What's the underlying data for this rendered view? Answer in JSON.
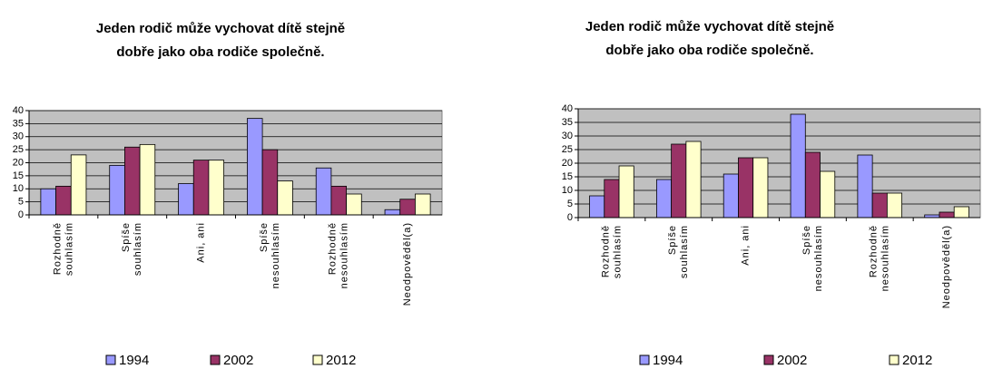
{
  "chart_data": [
    {
      "type": "bar",
      "title": [
        "Jeden rodič může vychovat dítě stejně",
        "dobře jako oba rodiče společně."
      ],
      "categories": [
        [
          "Rozhodně",
          "souhlasím"
        ],
        [
          "Spíše",
          "souhlasím"
        ],
        [
          "Ani, ani"
        ],
        [
          "Spíše",
          "nesouhlasím"
        ],
        [
          "Rozhodně",
          "nesouhlasím"
        ],
        [
          "Neodpověděl(a)"
        ]
      ],
      "series": [
        {
          "name": "1994",
          "color": "#9999ff",
          "values": [
            10,
            19,
            12,
            37,
            18,
            2
          ]
        },
        {
          "name": "2002",
          "color": "#993366",
          "values": [
            11,
            26,
            21,
            25,
            11,
            6
          ]
        },
        {
          "name": "2012",
          "color": "#ffffcc",
          "values": [
            23,
            27,
            21,
            13,
            8,
            8
          ]
        }
      ],
      "ylim": [
        0,
        40
      ],
      "yticks": [
        0,
        5,
        10,
        15,
        20,
        25,
        30,
        35,
        40
      ],
      "grid": true,
      "legend": "bottom"
    },
    {
      "type": "bar",
      "title": [
        "Jeden rodič může vychovat dítě stejně",
        "dobře jako oba rodiče společně."
      ],
      "categories": [
        [
          "Rozhodně",
          "souhlasím"
        ],
        [
          "Spíše",
          "souhlasím"
        ],
        [
          "Ani, ani"
        ],
        [
          "Spíše",
          "nesouhlasím"
        ],
        [
          "Rozhodně",
          "nesouhlasím"
        ],
        [
          "Neodpověděl(a)"
        ]
      ],
      "series": [
        {
          "name": "1994",
          "color": "#9999ff",
          "values": [
            8,
            14,
            16,
            38,
            23,
            1
          ]
        },
        {
          "name": "2002",
          "color": "#993366",
          "values": [
            14,
            27,
            22,
            24,
            9,
            2
          ]
        },
        {
          "name": "2012",
          "color": "#ffffcc",
          "values": [
            19,
            28,
            22,
            17,
            9,
            4
          ]
        }
      ],
      "ylim": [
        0,
        40
      ],
      "yticks": [
        0,
        5,
        10,
        15,
        20,
        25,
        30,
        35,
        40
      ],
      "grid": true,
      "legend": "bottom"
    }
  ]
}
